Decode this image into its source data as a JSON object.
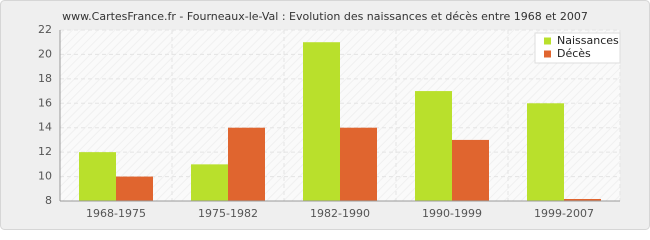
{
  "chart_data": {
    "type": "bar",
    "title": "www.CartesFrance.fr - Fourneaux-le-Val : Evolution des naissances et décès entre 1968 et 2007",
    "categories": [
      "1968-1975",
      "1975-1982",
      "1982-1990",
      "1990-1999",
      "1999-2007"
    ],
    "series": [
      {
        "name": "Naissances",
        "color": "#b9e02c",
        "values": [
          12,
          11,
          21,
          17,
          16
        ]
      },
      {
        "name": "Décès",
        "color": "#e0652f",
        "values": [
          10,
          14,
          14,
          13,
          8
        ]
      }
    ],
    "ylim": [
      8,
      22
    ],
    "yticks": [
      8,
      10,
      12,
      14,
      16,
      18,
      20,
      22
    ],
    "grid": true,
    "legend": "upper-right"
  }
}
